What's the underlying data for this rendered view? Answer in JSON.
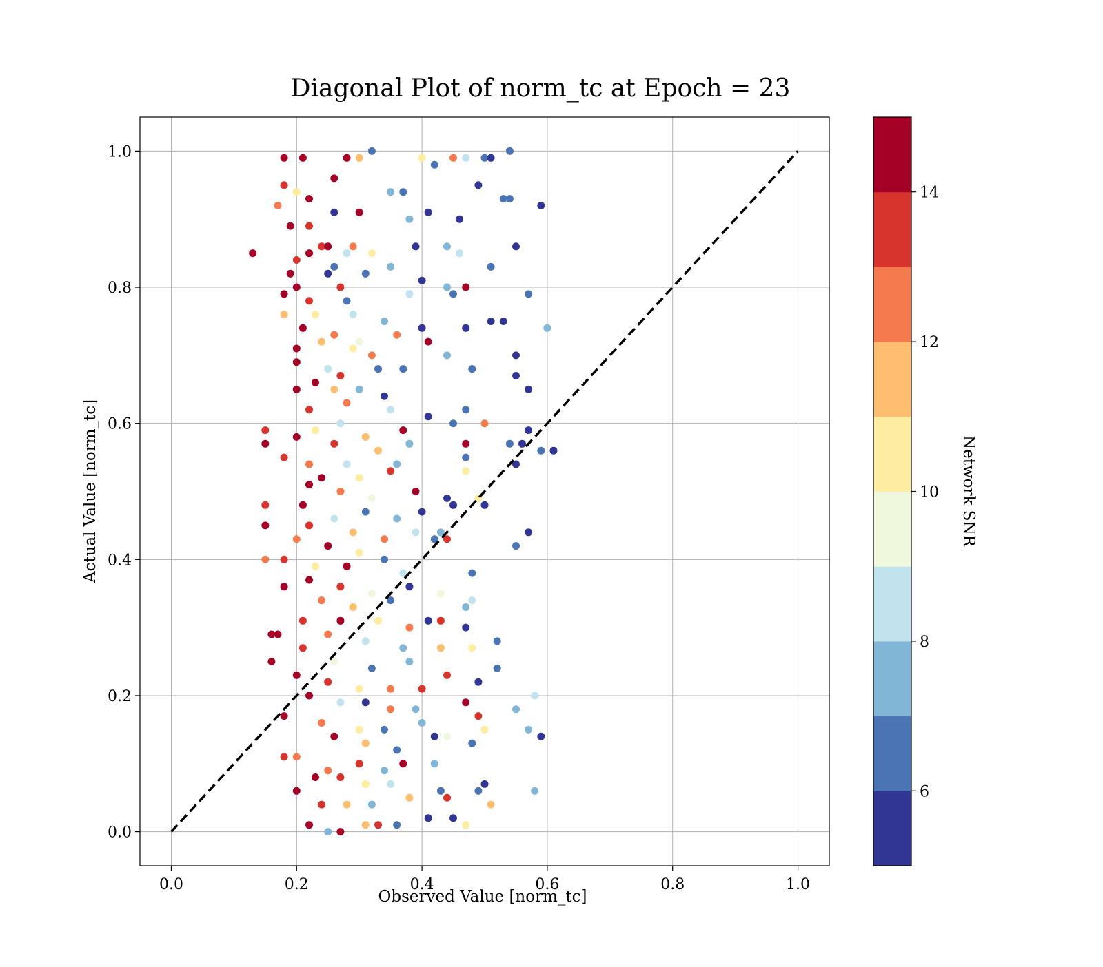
{
  "chart_data": {
    "type": "scatter",
    "title": "Diagonal Plot of norm_tc at Epoch = 23",
    "xlabel": "Observed Value [norm_tc]",
    "ylabel": "Actual Value [norm_tc]",
    "xlim": [
      -0.05,
      1.05
    ],
    "ylim": [
      -0.05,
      1.05
    ],
    "xticks": [
      "0.0",
      "0.2",
      "0.4",
      "0.6",
      "0.8",
      "1.0"
    ],
    "yticks": [
      "0.0",
      "0.2",
      "0.4",
      "0.6",
      "0.8",
      "1.0"
    ],
    "grid": true,
    "reference_line": {
      "style": "dashed",
      "color": "#000000",
      "from": [
        0.0,
        0.0
      ],
      "to": [
        1.0,
        1.0
      ]
    },
    "colorbar": {
      "label": "Network SNR",
      "min": 5,
      "max": 15,
      "ticks": [
        "6",
        "8",
        "10",
        "12",
        "14"
      ],
      "colors": [
        "#313695",
        "#4a74b4",
        "#81b6d6",
        "#c1e3ee",
        "#eff8dd",
        "#feeca1",
        "#fdbe70",
        "#f57b4e",
        "#d6342d",
        "#a50026"
      ]
    },
    "points": [
      [
        0.13,
        0.85,
        14.5
      ],
      [
        0.18,
        0.99,
        14.5
      ],
      [
        0.21,
        0.99,
        14.5
      ],
      [
        0.28,
        0.99,
        14.5
      ],
      [
        0.3,
        0.99,
        11.5
      ],
      [
        0.32,
        1.0,
        6.5
      ],
      [
        0.4,
        0.99,
        10.5
      ],
      [
        0.45,
        0.99,
        12.5
      ],
      [
        0.47,
        0.99,
        8.5
      ],
      [
        0.5,
        0.99,
        6.5
      ],
      [
        0.51,
        0.99,
        5.5
      ],
      [
        0.54,
        1.0,
        6.5
      ],
      [
        0.18,
        0.95,
        13.5
      ],
      [
        0.26,
        0.96,
        14.5
      ],
      [
        0.42,
        0.98,
        6.5
      ],
      [
        0.49,
        0.95,
        5.5
      ],
      [
        0.2,
        0.94,
        10.5
      ],
      [
        0.22,
        0.93,
        14.5
      ],
      [
        0.35,
        0.94,
        7.5
      ],
      [
        0.37,
        0.94,
        6.5
      ],
      [
        0.53,
        0.93,
        6.5
      ],
      [
        0.54,
        0.93,
        6.5
      ],
      [
        0.59,
        0.92,
        5.5
      ],
      [
        0.17,
        0.92,
        12.5
      ],
      [
        0.26,
        0.91,
        5.5
      ],
      [
        0.3,
        0.91,
        14.5
      ],
      [
        0.41,
        0.91,
        5.5
      ],
      [
        0.19,
        0.89,
        14.5
      ],
      [
        0.22,
        0.89,
        13.5
      ],
      [
        0.38,
        0.9,
        7.5
      ],
      [
        0.46,
        0.9,
        5.5
      ],
      [
        0.24,
        0.86,
        13.5
      ],
      [
        0.25,
        0.86,
        14.5
      ],
      [
        0.29,
        0.86,
        12.5
      ],
      [
        0.39,
        0.86,
        5.5
      ],
      [
        0.44,
        0.86,
        7.5
      ],
      [
        0.46,
        0.85,
        8.5
      ],
      [
        0.55,
        0.86,
        5.5
      ],
      [
        0.2,
        0.84,
        13.5
      ],
      [
        0.22,
        0.85,
        14.5
      ],
      [
        0.28,
        0.85,
        8.5
      ],
      [
        0.32,
        0.85,
        10.5
      ],
      [
        0.26,
        0.83,
        6.5
      ],
      [
        0.35,
        0.83,
        7.5
      ],
      [
        0.51,
        0.83,
        6.5
      ],
      [
        0.19,
        0.82,
        14.5
      ],
      [
        0.25,
        0.82,
        5.5
      ],
      [
        0.31,
        0.82,
        6.5
      ],
      [
        0.2,
        0.8,
        14.5
      ],
      [
        0.27,
        0.8,
        13.5
      ],
      [
        0.4,
        0.81,
        5.5
      ],
      [
        0.44,
        0.8,
        7.5
      ],
      [
        0.47,
        0.8,
        14.5
      ],
      [
        0.18,
        0.79,
        14.5
      ],
      [
        0.22,
        0.78,
        13.5
      ],
      [
        0.28,
        0.78,
        6.5
      ],
      [
        0.38,
        0.79,
        8.5
      ],
      [
        0.45,
        0.79,
        6.5
      ],
      [
        0.57,
        0.79,
        6.5
      ],
      [
        0.18,
        0.76,
        11.5
      ],
      [
        0.23,
        0.76,
        10.5
      ],
      [
        0.29,
        0.76,
        8.5
      ],
      [
        0.34,
        0.75,
        7.5
      ],
      [
        0.47,
        0.74,
        5.5
      ],
      [
        0.51,
        0.75,
        5.5
      ],
      [
        0.53,
        0.75,
        5.5
      ],
      [
        0.6,
        0.74,
        7.5
      ],
      [
        0.21,
        0.74,
        14.5
      ],
      [
        0.26,
        0.73,
        12.5
      ],
      [
        0.3,
        0.72,
        9.5
      ],
      [
        0.36,
        0.73,
        12.5
      ],
      [
        0.4,
        0.74,
        5.5
      ],
      [
        0.2,
        0.71,
        14.5
      ],
      [
        0.24,
        0.72,
        11.5
      ],
      [
        0.29,
        0.71,
        10.5
      ],
      [
        0.32,
        0.7,
        12.5
      ],
      [
        0.41,
        0.72,
        14.5
      ],
      [
        0.44,
        0.7,
        7.5
      ],
      [
        0.55,
        0.7,
        5.5
      ],
      [
        0.2,
        0.69,
        14.5
      ],
      [
        0.25,
        0.68,
        8.5
      ],
      [
        0.27,
        0.67,
        13.5
      ],
      [
        0.33,
        0.68,
        6.5
      ],
      [
        0.37,
        0.68,
        6.5
      ],
      [
        0.48,
        0.68,
        6.5
      ],
      [
        0.55,
        0.67,
        5.5
      ],
      [
        0.23,
        0.66,
        14.5
      ],
      [
        0.26,
        0.65,
        11.5
      ],
      [
        0.3,
        0.65,
        7.5
      ],
      [
        0.34,
        0.64,
        5.5
      ],
      [
        0.57,
        0.65,
        5.5
      ],
      [
        0.2,
        0.65,
        14.5
      ],
      [
        0.22,
        0.62,
        13.5
      ],
      [
        0.28,
        0.63,
        12.5
      ],
      [
        0.35,
        0.62,
        8.5
      ],
      [
        0.41,
        0.61,
        5.5
      ],
      [
        0.47,
        0.62,
        6.5
      ],
      [
        0.23,
        0.59,
        10.5
      ],
      [
        0.27,
        0.6,
        8.5
      ],
      [
        0.31,
        0.58,
        11.5
      ],
      [
        0.37,
        0.59,
        14.5
      ],
      [
        0.45,
        0.6,
        6.5
      ],
      [
        0.5,
        0.6,
        12.5
      ],
      [
        0.15,
        0.59,
        13.5
      ],
      [
        0.15,
        0.57,
        14.5
      ],
      [
        0.2,
        0.58,
        14.5
      ],
      [
        0.26,
        0.57,
        13.5
      ],
      [
        0.33,
        0.56,
        11.5
      ],
      [
        0.38,
        0.57,
        7.5
      ],
      [
        0.47,
        0.57,
        14.5
      ],
      [
        0.54,
        0.57,
        6.5
      ],
      [
        0.56,
        0.57,
        5.5
      ],
      [
        0.57,
        0.59,
        5.5
      ],
      [
        0.59,
        0.56,
        6.5
      ],
      [
        0.61,
        0.56,
        5.5
      ],
      [
        0.18,
        0.55,
        13.5
      ],
      [
        0.22,
        0.54,
        12.5
      ],
      [
        0.28,
        0.54,
        8.5
      ],
      [
        0.36,
        0.54,
        7.5
      ],
      [
        0.47,
        0.55,
        6.5
      ],
      [
        0.55,
        0.54,
        5.5
      ],
      [
        0.24,
        0.52,
        14.5
      ],
      [
        0.3,
        0.52,
        10.5
      ],
      [
        0.35,
        0.53,
        13.5
      ],
      [
        0.47,
        0.53,
        10.5
      ],
      [
        0.22,
        0.51,
        14.5
      ],
      [
        0.27,
        0.5,
        12.5
      ],
      [
        0.32,
        0.49,
        9.5
      ],
      [
        0.39,
        0.5,
        14.5
      ],
      [
        0.44,
        0.49,
        5.5
      ],
      [
        0.49,
        0.49,
        10.5
      ],
      [
        0.5,
        0.48,
        5.5
      ],
      [
        0.15,
        0.48,
        13.5
      ],
      [
        0.21,
        0.48,
        14.5
      ],
      [
        0.26,
        0.46,
        8.5
      ],
      [
        0.31,
        0.47,
        6.5
      ],
      [
        0.36,
        0.46,
        7.5
      ],
      [
        0.4,
        0.47,
        5.5
      ],
      [
        0.45,
        0.48,
        5.5
      ],
      [
        0.15,
        0.45,
        14.5
      ],
      [
        0.22,
        0.45,
        13.5
      ],
      [
        0.29,
        0.44,
        11.5
      ],
      [
        0.34,
        0.43,
        12.5
      ],
      [
        0.39,
        0.44,
        8.5
      ],
      [
        0.43,
        0.44,
        7.5
      ],
      [
        0.57,
        0.44,
        5.5
      ],
      [
        0.2,
        0.43,
        12.5
      ],
      [
        0.25,
        0.42,
        14.5
      ],
      [
        0.3,
        0.41,
        10.5
      ],
      [
        0.42,
        0.43,
        6.5
      ],
      [
        0.44,
        0.43,
        13.5
      ],
      [
        0.55,
        0.42,
        6.5
      ],
      [
        0.15,
        0.4,
        12.5
      ],
      [
        0.18,
        0.4,
        13.5
      ],
      [
        0.23,
        0.39,
        10.5
      ],
      [
        0.28,
        0.39,
        14.5
      ],
      [
        0.34,
        0.4,
        6.5
      ],
      [
        0.37,
        0.38,
        8.5
      ],
      [
        0.48,
        0.38,
        6.5
      ],
      [
        0.22,
        0.37,
        14.5
      ],
      [
        0.27,
        0.36,
        13.5
      ],
      [
        0.32,
        0.35,
        9.5
      ],
      [
        0.38,
        0.36,
        5.5
      ],
      [
        0.18,
        0.36,
        14.5
      ],
      [
        0.24,
        0.34,
        12.5
      ],
      [
        0.29,
        0.33,
        11.5
      ],
      [
        0.35,
        0.34,
        6.5
      ],
      [
        0.43,
        0.35,
        9.5
      ],
      [
        0.47,
        0.33,
        7.5
      ],
      [
        0.48,
        0.34,
        8.5
      ],
      [
        0.21,
        0.31,
        13.5
      ],
      [
        0.27,
        0.31,
        14.5
      ],
      [
        0.33,
        0.31,
        10.5
      ],
      [
        0.38,
        0.3,
        12.5
      ],
      [
        0.41,
        0.31,
        5.5
      ],
      [
        0.43,
        0.31,
        13.5
      ],
      [
        0.47,
        0.3,
        5.5
      ],
      [
        0.16,
        0.29,
        14.5
      ],
      [
        0.17,
        0.29,
        14.5
      ],
      [
        0.25,
        0.29,
        12.5
      ],
      [
        0.31,
        0.28,
        8.5
      ],
      [
        0.37,
        0.27,
        7.5
      ],
      [
        0.43,
        0.27,
        11.5
      ],
      [
        0.48,
        0.27,
        10.5
      ],
      [
        0.52,
        0.28,
        6.5
      ],
      [
        0.21,
        0.27,
        13.5
      ],
      [
        0.26,
        0.25,
        9.5
      ],
      [
        0.32,
        0.24,
        6.5
      ],
      [
        0.38,
        0.25,
        7.5
      ],
      [
        0.52,
        0.24,
        6.5
      ],
      [
        0.16,
        0.25,
        14.5
      ],
      [
        0.2,
        0.23,
        14.5
      ],
      [
        0.25,
        0.22,
        13.5
      ],
      [
        0.3,
        0.21,
        10.5
      ],
      [
        0.35,
        0.21,
        12.5
      ],
      [
        0.4,
        0.21,
        13.5
      ],
      [
        0.44,
        0.23,
        13.5
      ],
      [
        0.49,
        0.22,
        5.5
      ],
      [
        0.22,
        0.2,
        14.5
      ],
      [
        0.27,
        0.19,
        8.5
      ],
      [
        0.31,
        0.19,
        5.5
      ],
      [
        0.35,
        0.18,
        12.5
      ],
      [
        0.39,
        0.18,
        7.5
      ],
      [
        0.47,
        0.19,
        14.5
      ],
      [
        0.18,
        0.17,
        14.5
      ],
      [
        0.24,
        0.16,
        12.5
      ],
      [
        0.3,
        0.15,
        10.5
      ],
      [
        0.34,
        0.15,
        6.5
      ],
      [
        0.4,
        0.16,
        7.5
      ],
      [
        0.42,
        0.14,
        5.5
      ],
      [
        0.48,
        0.13,
        6.5
      ],
      [
        0.49,
        0.17,
        13.5
      ],
      [
        0.5,
        0.15,
        10.5
      ],
      [
        0.55,
        0.18,
        7.5
      ],
      [
        0.57,
        0.15,
        7.5
      ],
      [
        0.58,
        0.2,
        8.5
      ],
      [
        0.59,
        0.14,
        5.5
      ],
      [
        0.26,
        0.14,
        14.5
      ],
      [
        0.31,
        0.13,
        11.5
      ],
      [
        0.36,
        0.12,
        6.5
      ],
      [
        0.44,
        0.14,
        9.5
      ],
      [
        0.18,
        0.11,
        13.5
      ],
      [
        0.2,
        0.11,
        12.5
      ],
      [
        0.25,
        0.09,
        12.5
      ],
      [
        0.3,
        0.1,
        13.5
      ],
      [
        0.34,
        0.09,
        7.5
      ],
      [
        0.37,
        0.1,
        14.5
      ],
      [
        0.42,
        0.1,
        7.5
      ],
      [
        0.2,
        0.06,
        14.5
      ],
      [
        0.23,
        0.08,
        14.5
      ],
      [
        0.27,
        0.08,
        13.5
      ],
      [
        0.31,
        0.07,
        10.5
      ],
      [
        0.35,
        0.07,
        8.5
      ],
      [
        0.43,
        0.06,
        6.5
      ],
      [
        0.49,
        0.06,
        6.5
      ],
      [
        0.5,
        0.07,
        5.5
      ],
      [
        0.58,
        0.06,
        7.5
      ],
      [
        0.24,
        0.04,
        13.5
      ],
      [
        0.28,
        0.04,
        11.5
      ],
      [
        0.32,
        0.04,
        7.5
      ],
      [
        0.38,
        0.05,
        11.5
      ],
      [
        0.44,
        0.05,
        13.5
      ],
      [
        0.51,
        0.04,
        11.5
      ],
      [
        0.22,
        0.01,
        14.5
      ],
      [
        0.25,
        0.0,
        7.5
      ],
      [
        0.27,
        0.0,
        14.5
      ],
      [
        0.31,
        0.01,
        11.5
      ],
      [
        0.33,
        0.01,
        13.5
      ],
      [
        0.36,
        0.01,
        6.5
      ],
      [
        0.41,
        0.02,
        5.5
      ],
      [
        0.45,
        0.02,
        5.5
      ],
      [
        0.47,
        0.01,
        10.5
      ]
    ]
  }
}
